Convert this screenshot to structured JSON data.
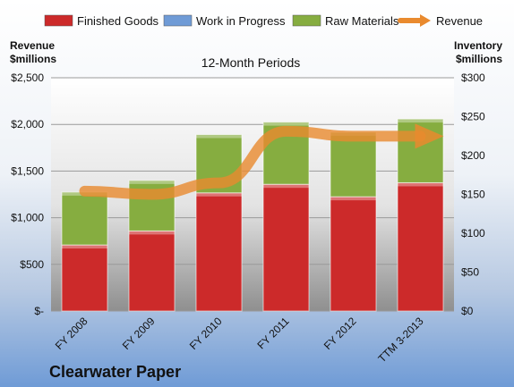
{
  "chart_data": {
    "type": "bar",
    "stacked": true,
    "subtitle": "12-Month Periods",
    "company": "Clearwater Paper",
    "left_axis_title": [
      "Revenue",
      "$millions"
    ],
    "right_axis_title": [
      "Inventory",
      "$millions"
    ],
    "categories": [
      "FY 2008",
      "FY 2009",
      "FY 2010",
      "FY 2011",
      "FY 2012",
      "TTM 3-2013"
    ],
    "left_ticks": [
      "$-",
      "$500",
      "$1,000",
      "$1,500",
      "$2,000",
      "$2,500"
    ],
    "right_ticks": [
      "$0",
      "$50",
      "$100",
      "$150",
      "$200",
      "$250",
      "$300"
    ],
    "ylim_left": [
      0,
      2500
    ],
    "ylim_right": [
      0,
      300
    ],
    "series": [
      {
        "name": "Finished Goods",
        "axis": "right",
        "color": "#cc2a2a",
        "values": [
          85,
          103,
          152,
          163,
          147,
          165
        ]
      },
      {
        "name": "Work in Progress",
        "axis": "right",
        "color": "#6f9bd6",
        "values": [
          0,
          0,
          0,
          0,
          0,
          0
        ]
      },
      {
        "name": "Raw Materials",
        "axis": "right",
        "color": "#86ad40",
        "values": [
          68,
          65,
          75,
          80,
          83,
          82
        ]
      },
      {
        "name": "Revenue",
        "axis": "left",
        "type": "line",
        "color": "#e98a2e",
        "values": [
          1285,
          1250,
          1373,
          1927,
          1874,
          1874
        ]
      }
    ],
    "legend_position": "top",
    "grid": true
  }
}
